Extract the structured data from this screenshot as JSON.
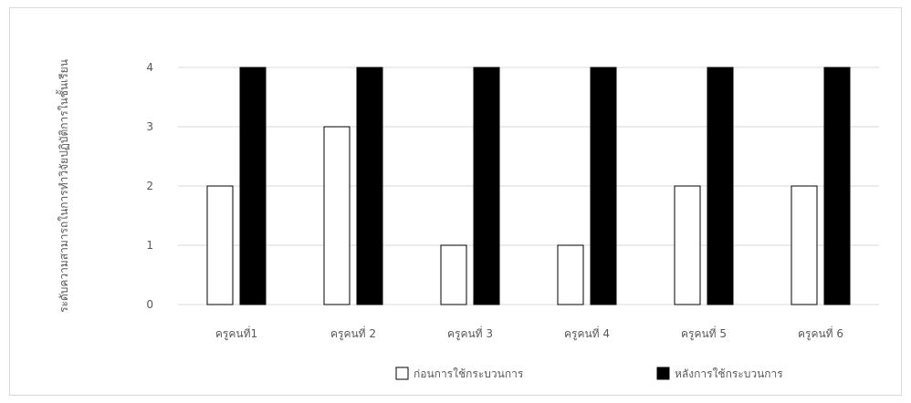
{
  "chart_data": {
    "type": "bar",
    "categories": [
      "ครูคนที่1",
      "ครูคนที่ 2",
      "ครูคนที่ 3",
      "ครูคนที่ 4",
      "ครูคนที่ 5",
      "ครูคนที่ 6"
    ],
    "series": [
      {
        "name": "ก่อนการใช้กระบวนการ",
        "values": [
          2,
          3,
          1,
          1,
          2,
          2
        ],
        "color": "#ffffff",
        "stroke": "#000000"
      },
      {
        "name": "หลังการใช้กระบวนการ",
        "values": [
          4,
          4,
          4,
          4,
          4,
          4
        ],
        "color": "#000000",
        "stroke": "#000000"
      }
    ],
    "ylabel": "ระดับความสามารถในการทำวิจัยปฏิบัติการในชั้นเรียน",
    "ylim": [
      0,
      4
    ],
    "yticks": [
      0,
      1,
      2,
      3,
      4
    ],
    "grid": true,
    "legend": "bottom-right",
    "gridColor": "#d9d9d9"
  }
}
